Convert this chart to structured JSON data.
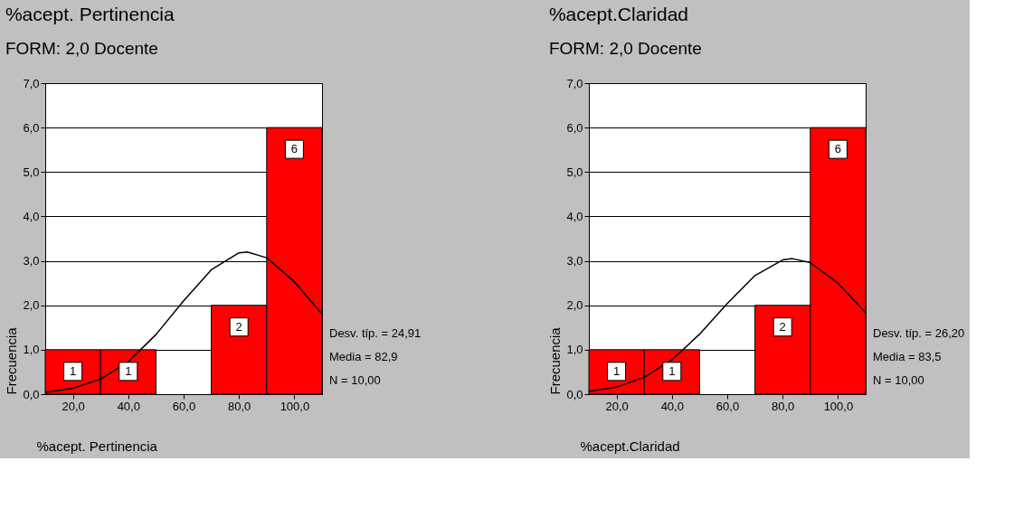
{
  "chart_data": [
    {
      "type": "histogram",
      "title": "%acept. Pertinencia",
      "subtitle": "FORM:    2,0   Docente",
      "xlabel": "%acept. Pertinencia",
      "ylabel": "Frecuencia",
      "bins": [
        10,
        30,
        50,
        70,
        90,
        110
      ],
      "values": [
        1,
        1,
        0,
        2,
        6
      ],
      "color": "#ff0000",
      "value_labels": [
        "1",
        "1",
        null,
        "2",
        "6"
      ],
      "series": [
        {
          "type": "line",
          "color": "#000000",
          "x": [
            10,
            20,
            30,
            40,
            50,
            60,
            70,
            80,
            83,
            90,
            100,
            110
          ],
          "values": [
            0.04,
            0.13,
            0.34,
            0.73,
            1.34,
            2.1,
            2.8,
            3.18,
            3.2,
            3.07,
            2.53,
            1.8
          ]
        }
      ],
      "xlim": [
        10,
        110
      ],
      "xticks": [
        {
          "value": 20,
          "label": "20,0"
        },
        {
          "value": 40,
          "label": "40,0"
        },
        {
          "value": 60,
          "label": "60,0"
        },
        {
          "value": 80,
          "label": "80,0"
        },
        {
          "value": 100,
          "label": "100,0"
        }
      ],
      "ylim": [
        0,
        7
      ],
      "yticks": [
        {
          "value": 0,
          "label": "0,0"
        },
        {
          "value": 1,
          "label": "1,0"
        },
        {
          "value": 2,
          "label": "2,0"
        },
        {
          "value": 3,
          "label": "3,0"
        },
        {
          "value": 4,
          "label": "4,0"
        },
        {
          "value": 5,
          "label": "5,0"
        },
        {
          "value": 6,
          "label": "6,0"
        },
        {
          "value": 7,
          "label": "7,0"
        }
      ],
      "grid": "y",
      "annotations": [
        "Desv. típ. = 24,91",
        "Media = 82,9",
        "N = 10,00"
      ]
    },
    {
      "type": "histogram",
      "title": "%acept.Claridad",
      "subtitle": "FORM:    2,0   Docente",
      "xlabel": "%acept.Claridad",
      "ylabel": "Frecuencia",
      "bins": [
        10,
        30,
        50,
        70,
        90,
        110
      ],
      "values": [
        1,
        1,
        0,
        2,
        6
      ],
      "color": "#ff0000",
      "value_labels": [
        "1",
        "1",
        null,
        "2",
        "6"
      ],
      "series": [
        {
          "type": "line",
          "color": "#000000",
          "x": [
            10,
            20,
            30,
            40,
            50,
            60,
            70,
            80,
            83.5,
            90,
            100,
            110
          ],
          "values": [
            0.06,
            0.16,
            0.38,
            0.77,
            1.35,
            2.04,
            2.67,
            3.02,
            3.05,
            2.96,
            2.5,
            1.83
          ]
        }
      ],
      "xlim": [
        10,
        110
      ],
      "xticks": [
        {
          "value": 20,
          "label": "20,0"
        },
        {
          "value": 40,
          "label": "40,0"
        },
        {
          "value": 60,
          "label": "60,0"
        },
        {
          "value": 80,
          "label": "80,0"
        },
        {
          "value": 100,
          "label": "100,0"
        }
      ],
      "ylim": [
        0,
        7
      ],
      "yticks": [
        {
          "value": 0,
          "label": "0,0"
        },
        {
          "value": 1,
          "label": "1,0"
        },
        {
          "value": 2,
          "label": "2,0"
        },
        {
          "value": 3,
          "label": "3,0"
        },
        {
          "value": 4,
          "label": "4,0"
        },
        {
          "value": 5,
          "label": "5,0"
        },
        {
          "value": 6,
          "label": "6,0"
        },
        {
          "value": 7,
          "label": "7,0"
        }
      ],
      "grid": "y",
      "annotations": [
        "Desv. típ. = 26,20",
        "Media = 83,5",
        "N = 10,00"
      ]
    }
  ]
}
